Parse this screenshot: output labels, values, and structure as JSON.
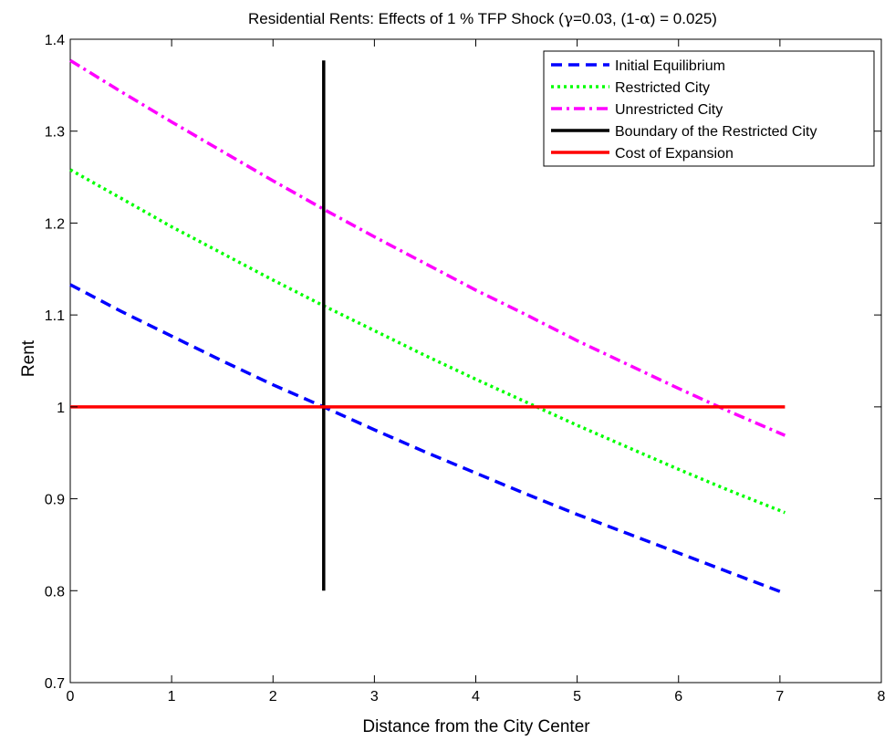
{
  "chart_data": {
    "type": "line",
    "title_parts": {
      "pre": "Residential Rents: Effects of 1 % TFP Shock (",
      "gamma_symbol": "γ",
      "gamma_eq": "=0.03, (1-",
      "alpha_symbol": "α",
      "post": ") = 0.025)"
    },
    "xlabel": "Distance from the City Center",
    "ylabel": "Rent",
    "xlim": [
      0,
      8
    ],
    "ylim": [
      0.7,
      1.4
    ],
    "xticks": [
      0,
      1,
      2,
      3,
      4,
      5,
      6,
      7,
      8
    ],
    "yticks": [
      0.7,
      0.8,
      0.9,
      1.0,
      1.1,
      1.2,
      1.3,
      1.4
    ],
    "ytick_labels": [
      "0.7",
      "0.8",
      "0.9",
      "1",
      "1.1",
      "1.2",
      "1.3",
      "1.4"
    ],
    "grid": false,
    "legend_position": "top-right",
    "series": [
      {
        "name": "Initial Equilibrium",
        "color": "#0000ff",
        "style": "dashed",
        "x": [
          0,
          0.5,
          1,
          1.5,
          2,
          2.5,
          3,
          3.5,
          4,
          4.5,
          5,
          5.5,
          6,
          6.5,
          7.05
        ],
        "y": [
          1.133,
          1.104,
          1.077,
          1.05,
          1.024,
          1.0,
          0.975,
          0.951,
          0.928,
          0.905,
          0.883,
          0.862,
          0.841,
          0.82,
          0.797
        ]
      },
      {
        "name": "Restricted City",
        "color": "#00ff00",
        "style": "dotted",
        "x": [
          0,
          0.5,
          1,
          1.5,
          2,
          2.5,
          3,
          3.5,
          4,
          4.5,
          5,
          5.5,
          6,
          6.5,
          7.05
        ],
        "y": [
          1.258,
          1.227,
          1.196,
          1.167,
          1.138,
          1.11,
          1.083,
          1.056,
          1.03,
          1.005,
          0.98,
          0.956,
          0.932,
          0.909,
          0.885
        ]
      },
      {
        "name": "Unrestricted City",
        "color": "#ff00ff",
        "style": "dashdot",
        "x": [
          0,
          0.5,
          1,
          1.5,
          2,
          2.5,
          3,
          3.5,
          4,
          4.5,
          5,
          5.5,
          6,
          6.5,
          7.05
        ],
        "y": [
          1.377,
          1.343,
          1.31,
          1.278,
          1.246,
          1.215,
          1.185,
          1.156,
          1.127,
          1.1,
          1.072,
          1.046,
          1.02,
          0.995,
          0.969
        ]
      },
      {
        "name": "Boundary of the Restricted City",
        "color": "#000000",
        "style": "solid",
        "x": [
          2.5,
          2.5
        ],
        "y": [
          0.8,
          1.377
        ]
      },
      {
        "name": "Cost of Expansion",
        "color": "#ff0000",
        "style": "solid",
        "x": [
          0,
          7.05
        ],
        "y": [
          1.0,
          1.0
        ]
      }
    ]
  }
}
